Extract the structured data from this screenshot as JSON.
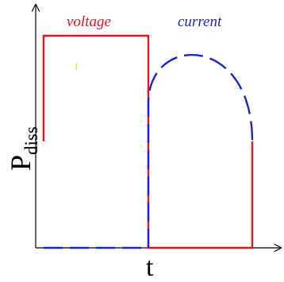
{
  "labels": {
    "voltage": "voltage",
    "current": "current",
    "x_axis": "t",
    "y_axis_main": "P",
    "y_axis_sub": "diss",
    "mark": "I"
  },
  "colors": {
    "axis": "#000000",
    "voltage": "#e8141c",
    "current": "#1a24d6",
    "mark": "#f0e020"
  }
}
